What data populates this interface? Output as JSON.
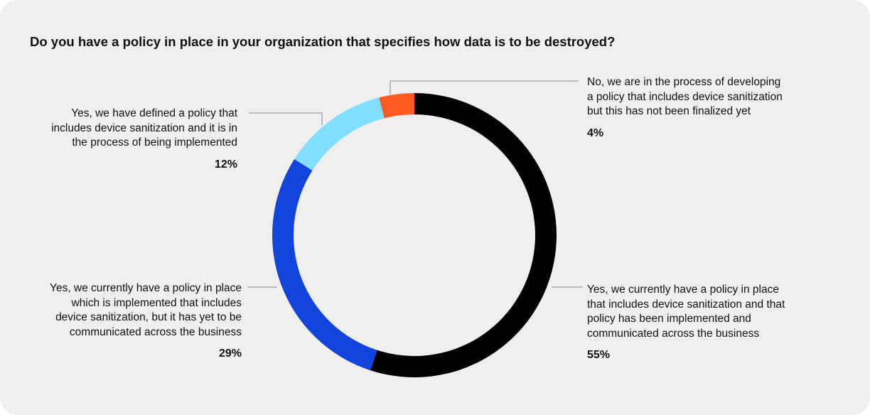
{
  "chart_data": {
    "type": "pie",
    "variant": "donut",
    "title": "Do you have a policy in place in your organization that specifies how data is to be destroyed?",
    "slices": [
      {
        "label": "Yes, we currently have a policy in place\nthat includes device sanitization and that\npolicy has been implemented and\ncommunicated across the business",
        "value": 55,
        "display": "55%",
        "color": "#000000"
      },
      {
        "label": "Yes, we currently have a policy in place\nwhich is implemented that includes\ndevice sanitization, but it has yet to be\ncommunicated across the business",
        "value": 29,
        "display": "29%",
        "color": "#1144dd"
      },
      {
        "label": "Yes, we have defined a policy that\nincludes device sanitization and it is in\nthe process of being implemented",
        "value": 12,
        "display": "12%",
        "color": "#80deff"
      },
      {
        "label": "No, we are in the process of developing\na policy that includes device sanitization\nbut this has not been finalized yet",
        "value": 4,
        "display": "4%",
        "color": "#ff5a1f"
      }
    ],
    "start": "12 o'clock",
    "direction": "clockwise",
    "legend": "none (callout labels)"
  }
}
